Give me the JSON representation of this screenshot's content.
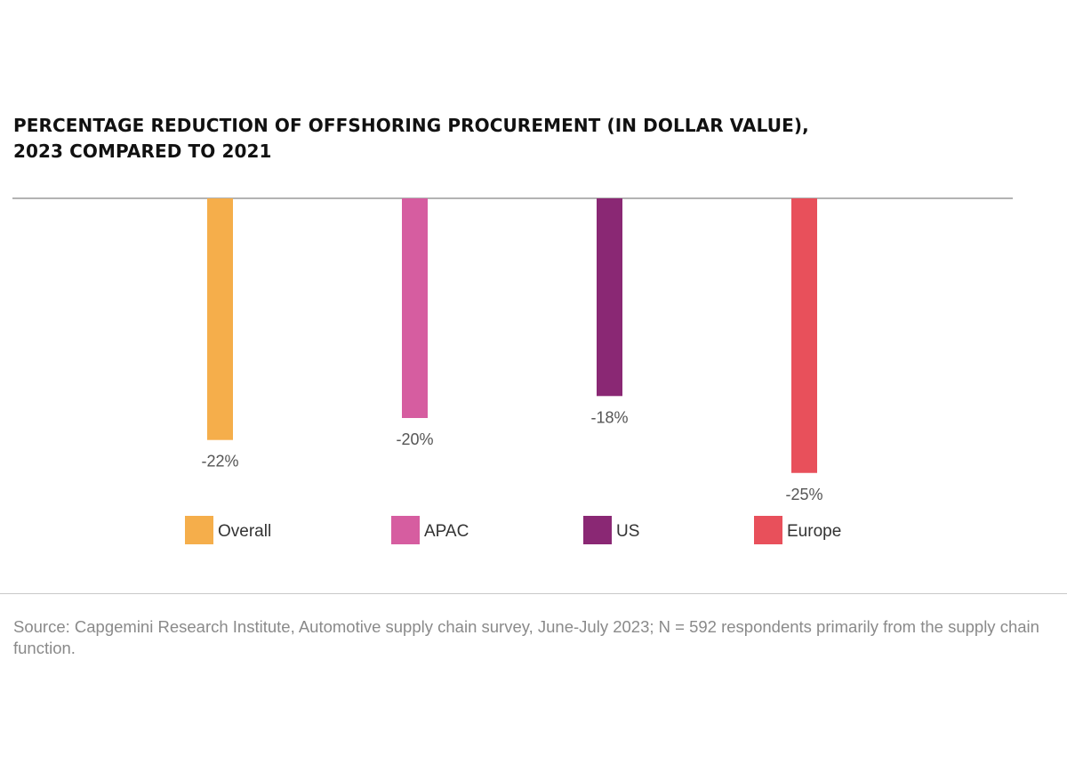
{
  "title": {
    "line1": "PERCENTAGE REDUCTION OF OFFSHORING PROCUREMENT (IN DOLLAR VALUE),",
    "line2": "2023 COMPARED TO 2021"
  },
  "source": "Source: Capgemini Research Institute, Automotive supply chain survey, June-July 2023; N = 592 respondents primarily from the supply chain function.",
  "chart_data": {
    "type": "bar",
    "title": "PERCENTAGE REDUCTION OF OFFSHORING PROCUREMENT (IN DOLLAR VALUE), 2023 COMPARED TO 2021",
    "categories": [
      "Overall",
      "APAC",
      "US",
      "Europe"
    ],
    "values": [
      -22,
      -20,
      -18,
      -25
    ],
    "value_labels": [
      "-22%",
      "-20%",
      "-18%",
      "-25%"
    ],
    "colors": [
      "#f5ae4b",
      "#d65da0",
      "#8a2874",
      "#e8505b"
    ],
    "legend": [
      "Overall",
      "APAC",
      "US",
      "Europe"
    ],
    "legend_position": "bottom",
    "xlabel": "",
    "ylabel": "",
    "ylim": [
      -25,
      0
    ],
    "grid": false
  }
}
